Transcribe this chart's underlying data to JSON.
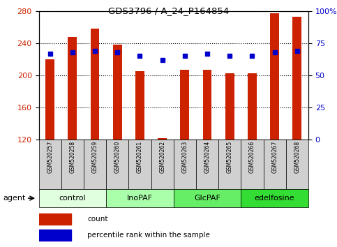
{
  "title": "GDS3796 / A_24_P164854",
  "samples": [
    "GSM520257",
    "GSM520258",
    "GSM520259",
    "GSM520260",
    "GSM520261",
    "GSM520262",
    "GSM520263",
    "GSM520264",
    "GSM520265",
    "GSM520266",
    "GSM520267",
    "GSM520268"
  ],
  "bar_heights": [
    220,
    248,
    258,
    238,
    205,
    122,
    207,
    207,
    203,
    203,
    277,
    273
  ],
  "bar_bottom": 120,
  "percentile_values": [
    67,
    68,
    69,
    68,
    65,
    62,
    65,
    67,
    65,
    65,
    68,
    69
  ],
  "bar_color": "#cc2200",
  "dot_color": "#0000cc",
  "ylim_left": [
    120,
    280
  ],
  "ylim_right": [
    0,
    100
  ],
  "yticks_left": [
    120,
    160,
    200,
    240,
    280
  ],
  "yticks_right": [
    0,
    25,
    50,
    75,
    100
  ],
  "yticklabels_right": [
    "0",
    "25",
    "50",
    "75",
    "100%"
  ],
  "groups": [
    {
      "label": "control",
      "start": 0,
      "end": 3,
      "color": "#dfffdf"
    },
    {
      "label": "InoPAF",
      "start": 3,
      "end": 6,
      "color": "#aaffaa"
    },
    {
      "label": "GlcPAF",
      "start": 6,
      "end": 9,
      "color": "#66ee66"
    },
    {
      "label": "edelfosine",
      "start": 9,
      "end": 12,
      "color": "#33dd33"
    }
  ],
  "agent_label": "agent",
  "legend_count_label": "count",
  "legend_pct_label": "percentile rank within the sample",
  "plot_bg_color": "#ffffff",
  "bar_width": 0.4,
  "dot_size": 18
}
